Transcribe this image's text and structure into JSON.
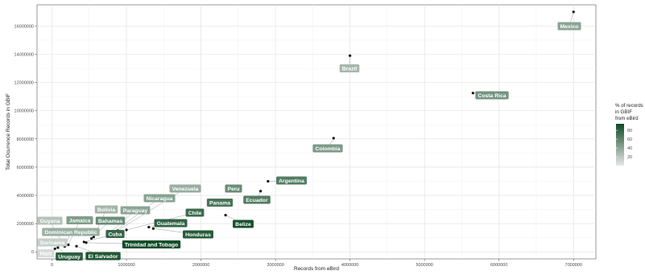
{
  "chart_data": {
    "type": "scatter",
    "xlabel": "Records from eBird",
    "ylabel": "Total Ocurrence Records in GBIF",
    "xlim": [
      -200000,
      7300000
    ],
    "ylim": [
      -500000,
      17500000
    ],
    "x_ticks": [
      "0",
      "1000000",
      "2000000",
      "3000000",
      "4000000",
      "5000000",
      "6000000",
      "7000000"
    ],
    "y_ticks": [
      "0",
      "2000000",
      "4000000",
      "6000000",
      "8000000",
      "10000000",
      "12000000",
      "14000000",
      "16000000"
    ],
    "grid": true,
    "legend": {
      "title": "% of records in GBIF from eBird",
      "title_lines": [
        "% of records",
        "in GBIF",
        "from eBird"
      ],
      "placement": "right",
      "ticks": [
        "20",
        "40",
        "60",
        "80"
      ],
      "low_color": "#e8e8e8",
      "high_color": "#0e4a25"
    },
    "points": [
      {
        "name": "Mexico",
        "x": 7000000,
        "y": 17000000,
        "pct": 41
      },
      {
        "name": "Brazil",
        "x": 4000000,
        "y": 13900000,
        "pct": 29
      },
      {
        "name": "Costa Rica",
        "x": 5650000,
        "y": 11250000,
        "pct": 50
      },
      {
        "name": "Colombia",
        "x": 3780000,
        "y": 8050000,
        "pct": 47
      },
      {
        "name": "Argentina",
        "x": 2900000,
        "y": 5000000,
        "pct": 65
      },
      {
        "name": "Peru",
        "x": 2450000,
        "y": 4450000,
        "pct": 55
      },
      {
        "name": "Ecuador",
        "x": 2800000,
        "y": 4300000,
        "pct": 65
      },
      {
        "name": "Panama",
        "x": 2280000,
        "y": 3350000,
        "pct": 70
      },
      {
        "name": "Belize",
        "x": 2330000,
        "y": 2600000,
        "pct": 92
      },
      {
        "name": "Venezuela",
        "x": 880000,
        "y": 1500000,
        "pct": 35
      },
      {
        "name": "Nicaragua",
        "x": 820000,
        "y": 1350000,
        "pct": 42
      },
      {
        "name": "Paraguay",
        "x": 750000,
        "y": 1200000,
        "pct": 40
      },
      {
        "name": "Bolivia",
        "x": 560000,
        "y": 1050000,
        "pct": 30
      },
      {
        "name": "Bahamas",
        "x": 530000,
        "y": 950000,
        "pct": 55
      },
      {
        "name": "Chile",
        "x": 1000000,
        "y": 1550000,
        "pct": 75
      },
      {
        "name": "Guatemala",
        "x": 1300000,
        "y": 1750000,
        "pct": 80
      },
      {
        "name": "Honduras",
        "x": 1360000,
        "y": 1650000,
        "pct": 85
      },
      {
        "name": "Cuba",
        "x": 430000,
        "y": 700000,
        "pct": 78
      },
      {
        "name": "Guyana",
        "x": 150000,
        "y": 550000,
        "pct": 22
      },
      {
        "name": "Jamaica",
        "x": 220000,
        "y": 500000,
        "pct": 45
      },
      {
        "name": "Dominican Republic",
        "x": 180000,
        "y": 420000,
        "pct": 35
      },
      {
        "name": "Suriname",
        "x": 170000,
        "y": 380000,
        "pct": 15
      },
      {
        "name": "Haiti",
        "x": 40000,
        "y": 220000,
        "pct": 8
      },
      {
        "name": "Uruguay",
        "x": 80000,
        "y": 300000,
        "pct": 82
      },
      {
        "name": "El Salvador",
        "x": 330000,
        "y": 400000,
        "pct": 88
      },
      {
        "name": "Trinidad and Tobago",
        "x": 460000,
        "y": 650000,
        "pct": 92
      }
    ]
  }
}
